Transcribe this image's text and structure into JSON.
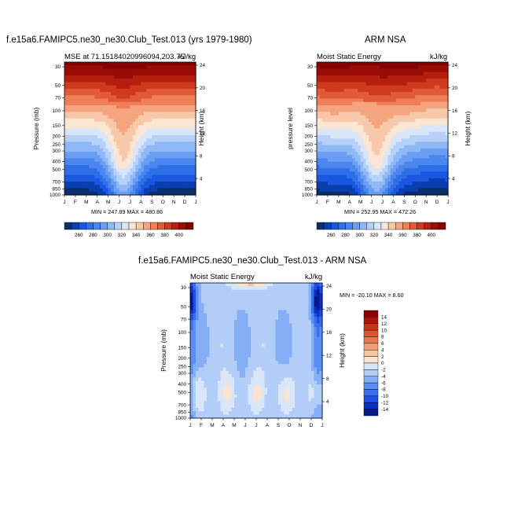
{
  "chart_data": [
    {
      "type": "heatmap",
      "title": "f.e15a6.FAMIPC5.ne30_ne30.Club_Test.013 (yrs 1979-1980)",
      "subtitle_left": "MSE at 71.15184020996094,203.75",
      "subtitle_right": "kJ/kg",
      "ylabel": "Pressure (mb)",
      "ylabel_right": "Height (km)",
      "x_ticks": [
        "J",
        "F",
        "M",
        "A",
        "M",
        "J",
        "J",
        "A",
        "S",
        "O",
        "N",
        "D",
        "J"
      ],
      "y_ticks": [
        "30",
        "50",
        "70",
        "100",
        "150",
        "200",
        "250",
        "300",
        "400",
        "500",
        "700",
        "850",
        "1000"
      ],
      "height_ticks": [
        "24",
        "20",
        "16",
        "12",
        "8",
        "4"
      ],
      "minmax_text": "MIN = 247.89  MAX = 480.86",
      "min": 247.89,
      "max": 480.86,
      "colorbar_labels": [
        "260",
        "280",
        "300",
        "320",
        "340",
        "360",
        "380",
        "400"
      ]
    },
    {
      "type": "heatmap",
      "title": "ARM NSA",
      "subtitle_left": "Moist Static Energy",
      "subtitle_right": "kJ/kg",
      "ylabel": "pressure level",
      "ylabel_right": "Height (km)",
      "x_ticks": [
        "J",
        "F",
        "M",
        "A",
        "M",
        "J",
        "J",
        "A",
        "S",
        "O",
        "N",
        "D",
        "J"
      ],
      "y_ticks": [
        "30",
        "50",
        "70",
        "100",
        "150",
        "200",
        "250",
        "300",
        "400",
        "500",
        "700",
        "850",
        "1000"
      ],
      "height_ticks": [
        "24",
        "20",
        "16",
        "12",
        "8",
        "4"
      ],
      "minmax_text": "MIN = 252.95  MAX = 472.26",
      "min": 252.95,
      "max": 472.26,
      "colorbar_labels": [
        "260",
        "280",
        "300",
        "320",
        "340",
        "360",
        "380",
        "400"
      ]
    },
    {
      "type": "heatmap",
      "title": "f.e15a6.FAMIPC5.ne30_ne30.Club_Test.013 - ARM NSA",
      "subtitle_left": "Moist Static Energy",
      "subtitle_right": "kJ/kg",
      "ylabel": "Pressure (mb)",
      "ylabel_right": "Height (km)",
      "x_ticks": [
        "J",
        "F",
        "M",
        "A",
        "M",
        "J",
        "J",
        "A",
        "S",
        "O",
        "N",
        "D",
        "J"
      ],
      "y_ticks": [
        "30",
        "50",
        "70",
        "100",
        "150",
        "200",
        "250",
        "300",
        "400",
        "500",
        "700",
        "850",
        "1000"
      ],
      "height_ticks": [
        "24",
        "20",
        "16",
        "12",
        "8",
        "4"
      ],
      "minmax_text": "MIN = -20.10  MAX =   8.60",
      "min": -20.1,
      "max": 8.6,
      "colorbar_labels": [
        "14",
        "12",
        "10",
        "8",
        "6",
        "4",
        "2",
        "0",
        "-2",
        "-4",
        "-6",
        "-8",
        "-10",
        "-12",
        "-14"
      ]
    }
  ],
  "colors": {
    "abs_scale": [
      "#08306b",
      "#0b3fb0",
      "#1a57e0",
      "#2e6fe8",
      "#4a86ee",
      "#6a9ef2",
      "#8fb8f6",
      "#b6d0f8",
      "#d8e6f8",
      "#fbe5d3",
      "#f7c8aa",
      "#f4a47e",
      "#ee7f58",
      "#e35a36",
      "#cf3a1e",
      "#b51f10",
      "#990d05",
      "#820300"
    ],
    "diff_scale": [
      "#001a8c",
      "#0a2fc2",
      "#1f4fe2",
      "#3a6fec",
      "#5b8ef2",
      "#86aef5",
      "#b2cdf7",
      "#d9e6f8",
      "#fbe3cf",
      "#f7c3a1",
      "#f29f75",
      "#ea7a4d",
      "#de5530",
      "#c63519",
      "#a8160a",
      "#8a0200"
    ]
  }
}
